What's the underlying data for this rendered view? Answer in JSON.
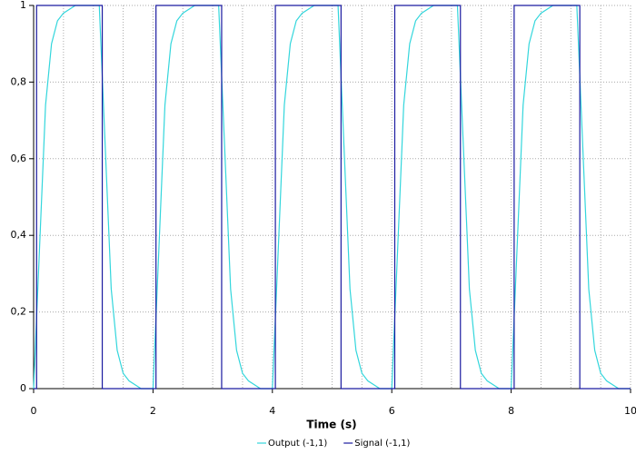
{
  "chart_data": {
    "type": "line",
    "x_label": "Time (s)",
    "xlim": [
      0,
      10
    ],
    "xticks": [
      0,
      2,
      4,
      6,
      8,
      10
    ],
    "x_minor_ticks": [
      0.5,
      1,
      1.5,
      2.5,
      3,
      3.5,
      4.5,
      5,
      5.5,
      6.5,
      7,
      7.5,
      8.5,
      9,
      9.5
    ],
    "ylim": [
      0,
      1
    ],
    "yticks": [
      0,
      {
        "value": 0.2,
        "label": "0,2"
      },
      {
        "value": 0.4,
        "label": "0,4"
      },
      {
        "value": 0.6,
        "label": "0,6"
      },
      {
        "value": 0.8,
        "label": "0,8"
      },
      1
    ],
    "grid": true,
    "legend": "bottom",
    "series": [
      {
        "name": "Output (-1,1)",
        "color": "#33d6dc",
        "x": [
          0,
          0.1,
          0.2,
          0.3,
          0.4,
          0.5,
          0.6,
          0.7,
          0.8,
          0.9,
          1,
          1.1,
          1.2,
          1.3,
          1.4,
          1.5,
          1.6,
          1.7,
          1.8,
          1.9,
          2,
          2.1,
          2.2,
          2.3,
          2.4,
          2.5,
          2.6,
          2.7,
          2.8,
          2.9,
          3,
          3.1,
          3.2,
          3.3,
          3.4,
          3.5,
          3.6,
          3.7,
          3.8,
          3.9,
          4,
          4.1,
          4.2,
          4.3,
          4.4,
          4.5,
          4.6,
          4.7,
          4.8,
          4.9,
          5,
          5.1,
          5.2,
          5.3,
          5.4,
          5.5,
          5.6,
          5.7,
          5.8,
          5.9,
          6,
          6.1,
          6.2,
          6.3,
          6.4,
          6.5,
          6.6,
          6.7,
          6.8,
          6.9,
          7,
          7.1,
          7.2,
          7.3,
          7.4,
          7.5,
          7.6,
          7.7,
          7.8,
          7.9,
          8,
          8.1,
          8.2,
          8.3,
          8.4,
          8.5,
          8.6,
          8.7,
          8.8,
          8.9,
          9,
          9.1,
          9.2,
          9.3,
          9.4,
          9.5,
          9.6,
          9.7,
          9.8,
          9.9,
          10
        ],
        "values": [
          0,
          0.37,
          0.74,
          0.9,
          0.96,
          0.98,
          0.99,
          1,
          1,
          1,
          1,
          1,
          0.63,
          0.26,
          0.1,
          0.04,
          0.02,
          0.01,
          0,
          0,
          0,
          0.37,
          0.74,
          0.9,
          0.96,
          0.98,
          0.99,
          1,
          1,
          1,
          1,
          1,
          0.63,
          0.26,
          0.1,
          0.04,
          0.02,
          0.01,
          0,
          0,
          0,
          0.37,
          0.74,
          0.9,
          0.96,
          0.98,
          0.99,
          1,
          1,
          1,
          1,
          1,
          0.63,
          0.26,
          0.1,
          0.04,
          0.02,
          0.01,
          0,
          0,
          0,
          0.37,
          0.74,
          0.9,
          0.96,
          0.98,
          0.99,
          1,
          1,
          1,
          1,
          1,
          0.63,
          0.26,
          0.1,
          0.04,
          0.02,
          0.01,
          0,
          0,
          0,
          0.37,
          0.74,
          0.9,
          0.96,
          0.98,
          0.99,
          1,
          1,
          1,
          1,
          1,
          0.63,
          0.26,
          0.1,
          0.04,
          0.02,
          0.01,
          0,
          0,
          0
        ]
      },
      {
        "name": "Signal (-1,1)",
        "color": "#1a1aa0",
        "x": [
          0,
          0.05,
          0.05,
          1.15,
          1.15,
          2.05,
          2.05,
          3.15,
          3.15,
          4.05,
          4.05,
          5.15,
          5.15,
          6.05,
          6.05,
          7.15,
          7.15,
          8.05,
          8.05,
          9.15,
          9.15,
          10
        ],
        "values": [
          0,
          0,
          1,
          1,
          0,
          0,
          1,
          1,
          0,
          0,
          1,
          1,
          0,
          0,
          1,
          1,
          0,
          0,
          1,
          1,
          0,
          0
        ]
      }
    ]
  }
}
